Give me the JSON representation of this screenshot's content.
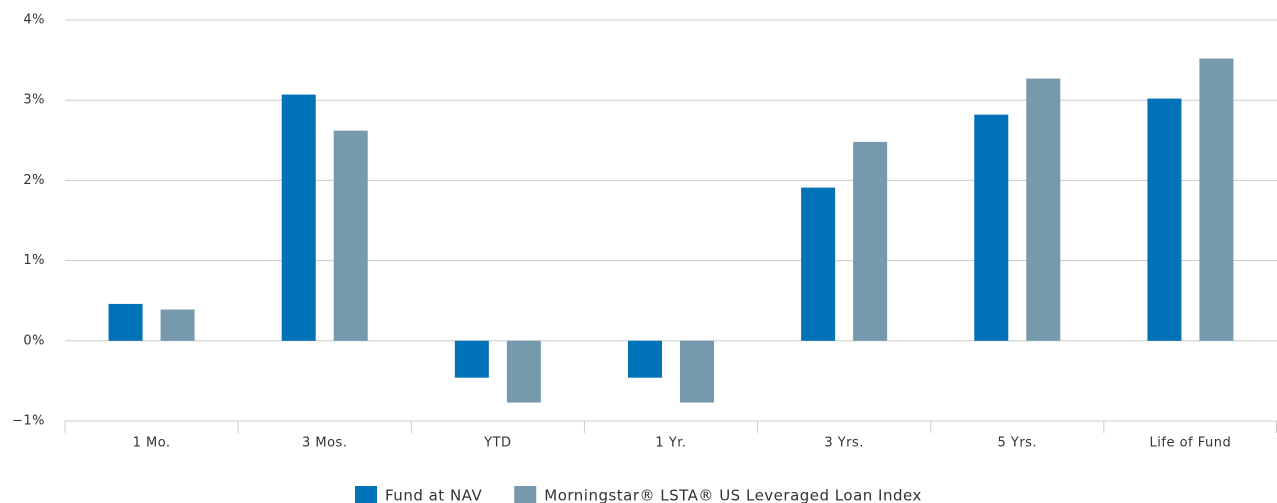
{
  "chart_data": {
    "type": "bar",
    "categories": [
      "1 Mo.",
      "3 Mos.",
      "YTD",
      "1 Yr.",
      "3 Yrs.",
      "5 Yrs.",
      "Life of Fund"
    ],
    "series": [
      {
        "name": "Fund at NAV",
        "color": "#0072b8",
        "values": [
          0.46,
          3.07,
          -0.46,
          -0.46,
          1.91,
          2.82,
          3.02
        ]
      },
      {
        "name": "Morningstar® LSTA® US Leveraged Loan Index",
        "color": "#7799ad",
        "values": [
          0.39,
          2.62,
          -0.77,
          -0.77,
          2.48,
          3.27,
          3.52
        ]
      }
    ],
    "ylim": [
      -1,
      4
    ],
    "yticks": [
      {
        "value": -1,
        "label": "−1%"
      },
      {
        "value": 0,
        "label": "0%"
      },
      {
        "value": 1,
        "label": "1%"
      },
      {
        "value": 2,
        "label": "2%"
      },
      {
        "value": 3,
        "label": "3%"
      },
      {
        "value": 4,
        "label": "4%"
      }
    ],
    "grid": true,
    "legend": "bottom"
  }
}
